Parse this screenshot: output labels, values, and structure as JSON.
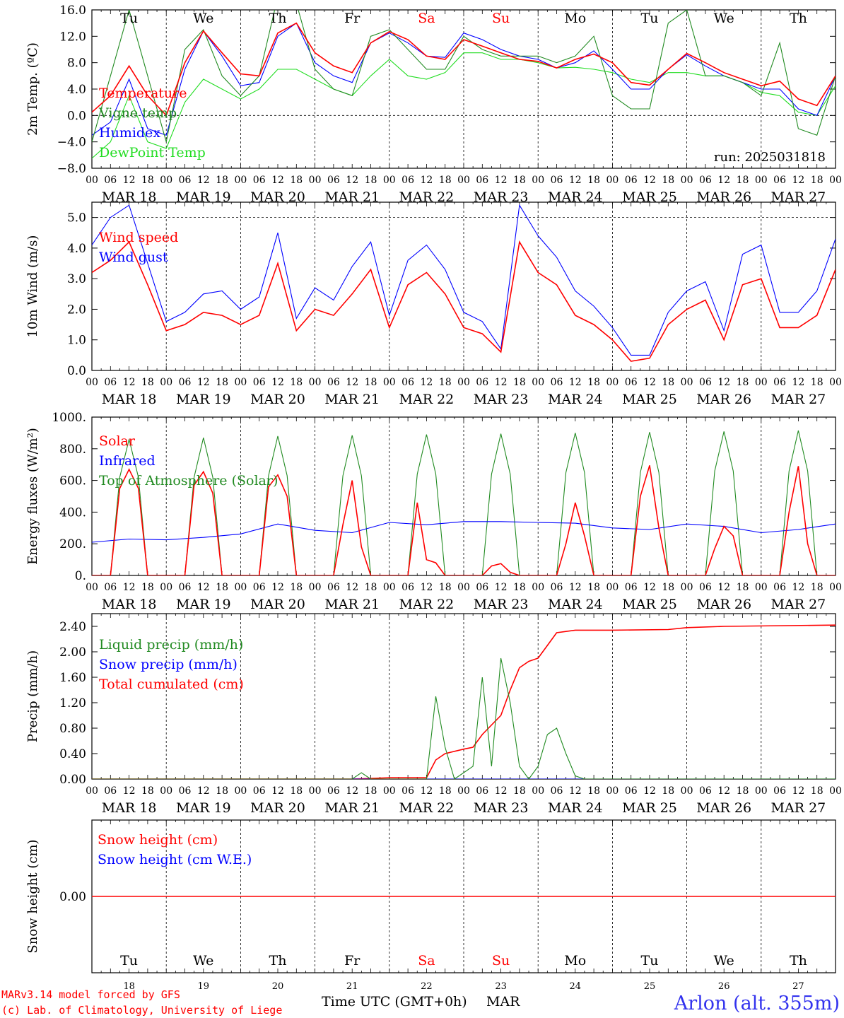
{
  "station": "Arlon (alt. 355m)",
  "credits": [
    "MARv3.14 model forced by GFS",
    "(c) Lab. of Climatology, University of Liege"
  ],
  "colors": {
    "red": "#ff0000",
    "green": "#228b22",
    "blue": "#0000ff",
    "lime": "#22dd22",
    "sat_sun": "#ff0000"
  },
  "days": [
    {
      "abbr": "Tu",
      "num": "18",
      "label": "MAR 18"
    },
    {
      "abbr": "We",
      "num": "19",
      "label": "MAR 19"
    },
    {
      "abbr": "Th",
      "num": "20",
      "label": "MAR 20"
    },
    {
      "abbr": "Fr",
      "num": "21",
      "label": "MAR 21"
    },
    {
      "abbr": "Sa",
      "num": "22",
      "label": "MAR 22"
    },
    {
      "abbr": "Su",
      "num": "23",
      "label": "MAR 23"
    },
    {
      "abbr": "Mo",
      "num": "24",
      "label": "MAR 24"
    },
    {
      "abbr": "Tu",
      "num": "25",
      "label": "MAR 25"
    },
    {
      "abbr": "We",
      "num": "26",
      "label": "MAR 26"
    },
    {
      "abbr": "Th",
      "num": "27",
      "label": "MAR 27"
    }
  ],
  "hour_ticks": [
    "00",
    "06",
    "12",
    "18"
  ],
  "chart_data": [
    {
      "type": "line",
      "ylabel": "2m Temp. (ºC)",
      "ylim": [
        -8,
        16
      ],
      "yticks": [
        "−8.0",
        "−4.0",
        "0.0",
        "4.0",
        "8.0",
        "12.0",
        "16.0"
      ],
      "ytick_values": [
        -8,
        -4,
        0,
        4,
        8,
        12,
        16
      ],
      "dashed_y": [
        0
      ],
      "annotation": "run: 2025031818",
      "x_unit": "hours since MAR 18 00 UTC",
      "series": [
        {
          "name": "Temperature",
          "color": "red",
          "x": [
            0,
            6,
            12,
            18,
            24,
            30,
            36,
            42,
            48,
            54,
            60,
            66,
            72,
            78,
            84,
            90,
            96,
            102,
            108,
            114,
            120,
            126,
            132,
            138,
            144,
            150,
            156,
            162,
            168,
            174,
            180,
            186,
            192,
            198,
            204,
            210,
            216,
            222,
            228,
            234,
            240
          ],
          "y": [
            0.5,
            3,
            7.5,
            3,
            0,
            8,
            12.8,
            9.5,
            6.3,
            6,
            12.5,
            14,
            9.5,
            7.5,
            6.5,
            11,
            12.7,
            11.5,
            9,
            8.5,
            11.5,
            10.5,
            9.5,
            8.5,
            8.2,
            7.2,
            8.5,
            9.3,
            8,
            5,
            4.6,
            7,
            9.4,
            8,
            6.5,
            5.5,
            4.5,
            5.2,
            2.5,
            1.5,
            6
          ]
        },
        {
          "name": "Vigne temp",
          "color": "green",
          "x": [
            0,
            6,
            12,
            18,
            24,
            30,
            36,
            42,
            48,
            54,
            60,
            66,
            72,
            78,
            84,
            90,
            96,
            102,
            108,
            114,
            120,
            126,
            132,
            138,
            144,
            150,
            156,
            162,
            168,
            174,
            180,
            186,
            192,
            198,
            204,
            210,
            216,
            222,
            228,
            234,
            240
          ],
          "y": [
            -4,
            6,
            16,
            6,
            -4,
            10,
            13,
            6,
            3,
            6,
            18,
            17,
            7,
            4,
            3,
            12,
            13,
            10,
            7,
            7,
            12,
            10,
            9,
            9,
            9,
            8,
            9,
            12,
            3,
            1,
            1,
            14,
            16,
            6,
            6,
            5,
            3,
            11,
            -2,
            -3,
            6
          ]
        },
        {
          "name": "Humidex",
          "color": "blue",
          "x": [
            0,
            6,
            12,
            18,
            24,
            30,
            36,
            42,
            48,
            54,
            60,
            66,
            72,
            78,
            84,
            90,
            96,
            102,
            108,
            114,
            120,
            126,
            132,
            138,
            144,
            150,
            156,
            162,
            168,
            174,
            180,
            186,
            192,
            198,
            204,
            210,
            216,
            222,
            228,
            234,
            240
          ],
          "y": [
            -3,
            -1,
            5.5,
            -2,
            -3,
            7,
            12.8,
            9,
            4.5,
            5,
            12,
            14,
            8,
            6,
            5,
            11,
            12.5,
            11,
            9,
            8.8,
            12.5,
            11.5,
            10,
            9,
            8.5,
            7.2,
            8,
            9.8,
            7,
            4,
            4,
            7,
            9.2,
            7.5,
            6,
            5,
            4,
            4,
            1,
            0,
            6
          ]
        },
        {
          "name": "DewPoint Temp",
          "color": "lime",
          "x": [
            0,
            6,
            12,
            18,
            24,
            30,
            36,
            42,
            48,
            54,
            60,
            66,
            72,
            78,
            84,
            90,
            96,
            102,
            108,
            114,
            120,
            126,
            132,
            138,
            144,
            150,
            156,
            162,
            168,
            174,
            180,
            186,
            192,
            198,
            204,
            210,
            216,
            222,
            228,
            234,
            240
          ],
          "y": [
            -6.5,
            -4,
            3,
            -4,
            -5,
            2,
            5.5,
            4,
            2.5,
            4,
            7,
            7,
            5.5,
            4,
            3,
            6,
            8.5,
            6,
            5.5,
            6.5,
            9.5,
            9.5,
            8.5,
            8.5,
            8,
            7.2,
            7.3,
            7,
            6.5,
            5.5,
            5,
            6.5,
            6.5,
            6,
            6,
            5,
            3.5,
            3,
            0.5,
            0,
            4.5
          ]
        }
      ]
    },
    {
      "type": "line",
      "ylabel": "10m Wind (m/s)",
      "ylim": [
        0,
        5.5
      ],
      "yticks": [
        "0.0",
        "1.0",
        "2.0",
        "3.0",
        "4.0",
        "5.0"
      ],
      "ytick_values": [
        0,
        1,
        2,
        3,
        4,
        5
      ],
      "dashed_y": [
        5
      ],
      "x_unit": "hours since MAR 18 00 UTC",
      "series": [
        {
          "name": "Wind speed",
          "color": "red",
          "x": [
            0,
            6,
            12,
            18,
            24,
            30,
            36,
            42,
            48,
            54,
            60,
            66,
            72,
            78,
            84,
            90,
            96,
            102,
            108,
            114,
            120,
            126,
            132,
            138,
            144,
            150,
            156,
            162,
            168,
            174,
            180,
            186,
            192,
            198,
            204,
            210,
            216,
            222,
            228,
            234,
            240
          ],
          "y": [
            3.2,
            3.6,
            4.2,
            2.8,
            1.3,
            1.5,
            1.9,
            1.8,
            1.5,
            1.8,
            3.5,
            1.3,
            2,
            1.8,
            2.5,
            3.3,
            1.4,
            2.8,
            3.2,
            2.5,
            1.4,
            1.2,
            0.6,
            4.2,
            3.2,
            2.8,
            1.8,
            1.5,
            1,
            0.3,
            0.4,
            1.5,
            2,
            2.3,
            1,
            2.8,
            3,
            1.4,
            1.4,
            1.8,
            3.3
          ]
        },
        {
          "name": "Wind gust",
          "color": "blue",
          "x": [
            0,
            6,
            12,
            18,
            24,
            30,
            36,
            42,
            48,
            54,
            60,
            66,
            72,
            78,
            84,
            90,
            96,
            102,
            108,
            114,
            120,
            126,
            132,
            138,
            144,
            150,
            156,
            162,
            168,
            174,
            180,
            186,
            192,
            198,
            204,
            210,
            216,
            222,
            228,
            234,
            240
          ],
          "y": [
            4.1,
            5,
            5.4,
            3.5,
            1.6,
            1.9,
            2.5,
            2.6,
            2,
            2.4,
            4.5,
            1.7,
            2.7,
            2.3,
            3.4,
            4.2,
            1.8,
            3.6,
            4.1,
            3.3,
            1.9,
            1.6,
            0.7,
            5.4,
            4.4,
            3.7,
            2.6,
            2.1,
            1.4,
            0.5,
            0.5,
            1.9,
            2.6,
            2.9,
            1.3,
            3.8,
            4.1,
            1.9,
            1.9,
            2.6,
            4.3
          ]
        }
      ]
    },
    {
      "type": "line",
      "ylabel": "Energy fluxes (W/m²)",
      "ylim": [
        0,
        1000
      ],
      "yticks": [
        "0.",
        "200.",
        "400.",
        "600.",
        "800.",
        "1000."
      ],
      "ytick_values": [
        0,
        200,
        400,
        600,
        800,
        1000
      ],
      "x_unit": "hours since MAR 18 00 UTC",
      "series": [
        {
          "name": "Solar",
          "color": "red",
          "x": [
            0,
            6,
            9,
            12,
            15,
            18,
            24,
            30,
            33,
            36,
            39,
            42,
            48,
            54,
            57,
            60,
            63,
            66,
            72,
            78,
            81,
            84,
            87,
            90,
            96,
            102,
            105,
            108,
            111,
            114,
            120,
            126,
            129,
            132,
            135,
            138,
            144,
            150,
            153,
            156,
            159,
            162,
            168,
            174,
            177,
            180,
            183,
            186,
            192,
            198,
            201,
            204,
            207,
            210,
            216,
            222,
            225,
            228,
            231,
            234,
            240
          ],
          "y": [
            0,
            0,
            550,
            670,
            550,
            0,
            0,
            0,
            570,
            655,
            520,
            0,
            0,
            0,
            560,
            635,
            500,
            0,
            0,
            0,
            320,
            600,
            180,
            0,
            0,
            0,
            460,
            100,
            80,
            0,
            0,
            0,
            60,
            75,
            20,
            0,
            0,
            0,
            200,
            460,
            250,
            0,
            0,
            0,
            500,
            695,
            300,
            0,
            0,
            0,
            170,
            310,
            250,
            0,
            0,
            0,
            400,
            690,
            200,
            0,
            0
          ]
        },
        {
          "name": "Infrared",
          "color": "blue",
          "x": [
            0,
            12,
            24,
            36,
            48,
            60,
            72,
            84,
            96,
            108,
            120,
            132,
            144,
            156,
            168,
            180,
            192,
            204,
            216,
            228,
            240
          ],
          "y": [
            210,
            230,
            225,
            240,
            262,
            325,
            285,
            270,
            335,
            320,
            340,
            340,
            335,
            330,
            300,
            290,
            325,
            310,
            270,
            290,
            325
          ]
        },
        {
          "name": "Top of Atmosphere (Solar)",
          "color": "green",
          "x": [
            0,
            6,
            9,
            12,
            15,
            18,
            24,
            30,
            33,
            36,
            39,
            42,
            48,
            54,
            57,
            60,
            63,
            66,
            72,
            78,
            81,
            84,
            87,
            90,
            96,
            102,
            105,
            108,
            111,
            114,
            120,
            126,
            129,
            132,
            135,
            138,
            144,
            150,
            153,
            156,
            159,
            162,
            168,
            174,
            177,
            180,
            183,
            186,
            192,
            198,
            201,
            204,
            207,
            210,
            216,
            222,
            225,
            228,
            231,
            234,
            240
          ],
          "y": [
            0,
            0,
            620,
            860,
            620,
            0,
            0,
            0,
            620,
            870,
            620,
            0,
            0,
            0,
            630,
            880,
            630,
            0,
            0,
            0,
            630,
            885,
            630,
            0,
            0,
            0,
            640,
            890,
            640,
            0,
            0,
            0,
            640,
            895,
            640,
            0,
            0,
            0,
            650,
            900,
            650,
            0,
            0,
            0,
            650,
            905,
            650,
            0,
            0,
            0,
            660,
            910,
            660,
            0,
            0,
            0,
            660,
            915,
            660,
            0,
            0
          ]
        }
      ]
    },
    {
      "type": "line",
      "ylabel": "Precip (mm/h)",
      "ylim": [
        0,
        2.6
      ],
      "yticks": [
        "0.00",
        "0.40",
        "0.80",
        "1.20",
        "1.60",
        "2.00",
        "2.40"
      ],
      "ytick_values": [
        0,
        0.4,
        0.8,
        1.2,
        1.6,
        2.0,
        2.4
      ],
      "x_unit": "hours since MAR 18 00 UTC",
      "series": [
        {
          "name": "Liquid precip (mm/h)",
          "color": "green",
          "x": [
            0,
            84,
            87,
            90,
            108,
            111,
            114,
            117,
            120,
            123,
            126,
            129,
            132,
            135,
            138,
            141,
            144,
            147,
            150,
            153,
            156,
            159,
            162,
            168,
            240
          ],
          "y": [
            0,
            0,
            0.1,
            0,
            0,
            1.3,
            0.5,
            0,
            0.1,
            0.2,
            1.6,
            0.2,
            1.9,
            1.2,
            0.2,
            0,
            0.2,
            0.7,
            0.8,
            0.4,
            0.05,
            0,
            0,
            0,
            0
          ]
        },
        {
          "name": "Snow precip (mm/h)",
          "color": "blue",
          "x": [
            0,
            240
          ],
          "y": [
            0,
            0
          ]
        },
        {
          "name": "Total cumulated (cm)",
          "color": "red",
          "x": [
            0,
            84,
            96,
            108,
            111,
            114,
            120,
            123,
            126,
            129,
            132,
            135,
            138,
            141,
            144,
            147,
            150,
            156,
            168,
            186,
            192,
            204,
            240
          ],
          "y": [
            0,
            0,
            0.02,
            0.02,
            0.3,
            0.4,
            0.47,
            0.5,
            0.7,
            0.85,
            1.0,
            1.4,
            1.75,
            1.85,
            1.9,
            2.1,
            2.3,
            2.34,
            2.34,
            2.35,
            2.38,
            2.4,
            2.42
          ]
        }
      ]
    },
    {
      "type": "line",
      "ylabel": "Snow height (cm)",
      "ylim": [
        -1,
        1
      ],
      "yticks": [
        "0.00"
      ],
      "ytick_values": [
        0
      ],
      "x_unit": "hours since MAR 18 00 UTC",
      "series": [
        {
          "name": "Snow height (cm)",
          "color": "red",
          "x": [
            0,
            240
          ],
          "y": [
            0,
            0
          ]
        },
        {
          "name": "Snow height (cm W.E.)",
          "color": "blue",
          "x": [
            0,
            240
          ],
          "y": [
            0,
            0
          ]
        }
      ]
    }
  ],
  "xlabel": "Time UTC (GMT+0h)",
  "month": "MAR"
}
